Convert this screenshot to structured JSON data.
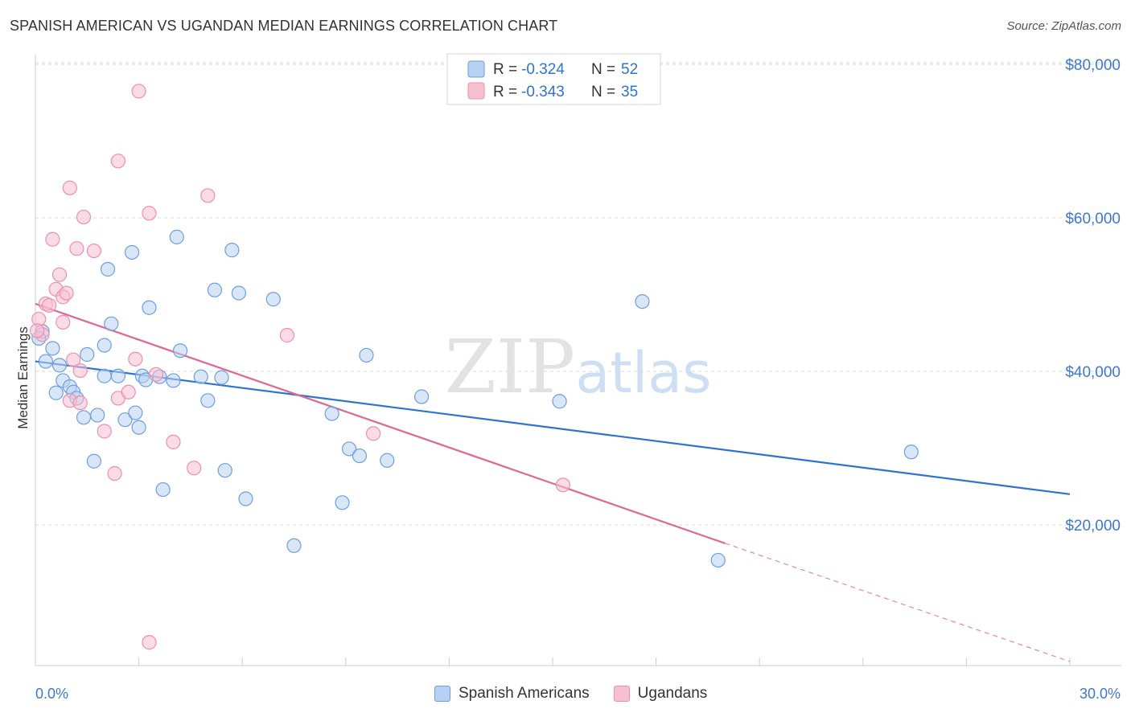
{
  "header": {
    "title": "SPANISH AMERICAN VS UGANDAN MEDIAN EARNINGS CORRELATION CHART",
    "source": "Source: ZipAtlas.com"
  },
  "watermark": {
    "zip": "ZIP",
    "atlas": "atlas"
  },
  "legend_box": {
    "row1": {
      "r_label": "R =",
      "r_value": "-0.324",
      "n_label": "N =",
      "n_value": "52"
    },
    "row2": {
      "r_label": "R =",
      "r_value": "-0.343",
      "n_label": "N =",
      "n_value": "35"
    }
  },
  "legend_bottom": {
    "series1": "Spanish Americans",
    "series2": "Ugandans"
  },
  "colors": {
    "blue_fill": "#b8d1f2",
    "blue_stroke": "#6d9fdd",
    "blue_line": "#2f73d0",
    "pink_fill": "#f7c0d1",
    "pink_stroke": "#ec8fab",
    "pink_line": "#e0678f",
    "axis_text": "#3d78cc",
    "grid": "#d9d9d9"
  },
  "chart_data": {
    "type": "scatter",
    "title": "SPANISH AMERICAN VS UGANDAN MEDIAN EARNINGS CORRELATION CHART",
    "xlabel": "",
    "ylabel": "Median Earnings",
    "xlim": [
      0,
      30
    ],
    "ylim": [
      2000,
      82000
    ],
    "x_tick_labels": [
      "0.0%",
      "30.0%"
    ],
    "y_ticks": [
      20000,
      40000,
      60000,
      80000
    ],
    "y_tick_labels": [
      "$20,000",
      "$40,000",
      "$60,000",
      "$80,000"
    ],
    "grid": true,
    "legend_position": "top-center",
    "series": [
      {
        "name": "Spanish Americans",
        "r": -0.324,
        "n": 52,
        "trend": {
          "x": [
            0,
            30
          ],
          "y": [
            41300,
            24000
          ]
        },
        "points": [
          [
            0.2,
            45200
          ],
          [
            0.3,
            41300
          ],
          [
            0.5,
            43000
          ],
          [
            0.6,
            37200
          ],
          [
            0.7,
            40800
          ],
          [
            0.8,
            38800
          ],
          [
            1.0,
            38000
          ],
          [
            1.1,
            37300
          ],
          [
            1.2,
            36500
          ],
          [
            1.4,
            34000
          ],
          [
            1.5,
            42200
          ],
          [
            1.7,
            28300
          ],
          [
            1.8,
            34300
          ],
          [
            2.0,
            43400
          ],
          [
            2.0,
            39400
          ],
          [
            2.1,
            53300
          ],
          [
            2.2,
            46200
          ],
          [
            2.4,
            39400
          ],
          [
            2.6,
            33700
          ],
          [
            2.8,
            55500
          ],
          [
            2.9,
            34600
          ],
          [
            3.0,
            32700
          ],
          [
            3.1,
            39400
          ],
          [
            3.2,
            38900
          ],
          [
            3.3,
            48300
          ],
          [
            3.6,
            39300
          ],
          [
            3.7,
            24600
          ],
          [
            4.0,
            38800
          ],
          [
            4.1,
            57500
          ],
          [
            4.2,
            42700
          ],
          [
            4.8,
            39300
          ],
          [
            5.0,
            36200
          ],
          [
            5.2,
            50600
          ],
          [
            5.4,
            39200
          ],
          [
            5.5,
            27100
          ],
          [
            5.7,
            55800
          ],
          [
            5.9,
            50200
          ],
          [
            6.1,
            23400
          ],
          [
            6.9,
            49400
          ],
          [
            7.5,
            17300
          ],
          [
            8.6,
            34500
          ],
          [
            8.9,
            22900
          ],
          [
            9.1,
            29900
          ],
          [
            9.4,
            29000
          ],
          [
            9.6,
            42100
          ],
          [
            10.2,
            28400
          ],
          [
            11.2,
            36700
          ],
          [
            15.2,
            36100
          ],
          [
            17.6,
            49100
          ],
          [
            19.8,
            15400
          ],
          [
            25.4,
            29500
          ],
          [
            0.1,
            44300
          ]
        ]
      },
      {
        "name": "Ugandans",
        "r": -0.343,
        "n": 35,
        "trend": {
          "x": [
            0,
            20.0
          ],
          "y": [
            48800,
            17600
          ]
        },
        "trend_dashed": {
          "x": [
            20.0,
            30
          ],
          "y": [
            17600,
            2200
          ]
        },
        "points": [
          [
            0.1,
            46800
          ],
          [
            0.2,
            44800
          ],
          [
            0.3,
            48800
          ],
          [
            0.4,
            48600
          ],
          [
            0.5,
            57200
          ],
          [
            0.6,
            50700
          ],
          [
            0.7,
            52600
          ],
          [
            0.8,
            49700
          ],
          [
            0.8,
            46400
          ],
          [
            0.9,
            50200
          ],
          [
            1.0,
            36200
          ],
          [
            1.0,
            63900
          ],
          [
            1.1,
            41500
          ],
          [
            1.2,
            56000
          ],
          [
            1.3,
            40100
          ],
          [
            1.3,
            35900
          ],
          [
            1.4,
            60100
          ],
          [
            1.7,
            55700
          ],
          [
            2.0,
            32200
          ],
          [
            2.3,
            26700
          ],
          [
            2.4,
            67400
          ],
          [
            2.4,
            36500
          ],
          [
            2.7,
            37300
          ],
          [
            2.9,
            41600
          ],
          [
            3.0,
            76500
          ],
          [
            3.3,
            4700
          ],
          [
            3.3,
            60600
          ],
          [
            3.5,
            39600
          ],
          [
            4.0,
            30800
          ],
          [
            4.6,
            27400
          ],
          [
            5.0,
            62900
          ],
          [
            7.3,
            44700
          ],
          [
            9.8,
            31900
          ],
          [
            15.3,
            25200
          ],
          [
            0.05,
            45300
          ]
        ]
      }
    ]
  }
}
